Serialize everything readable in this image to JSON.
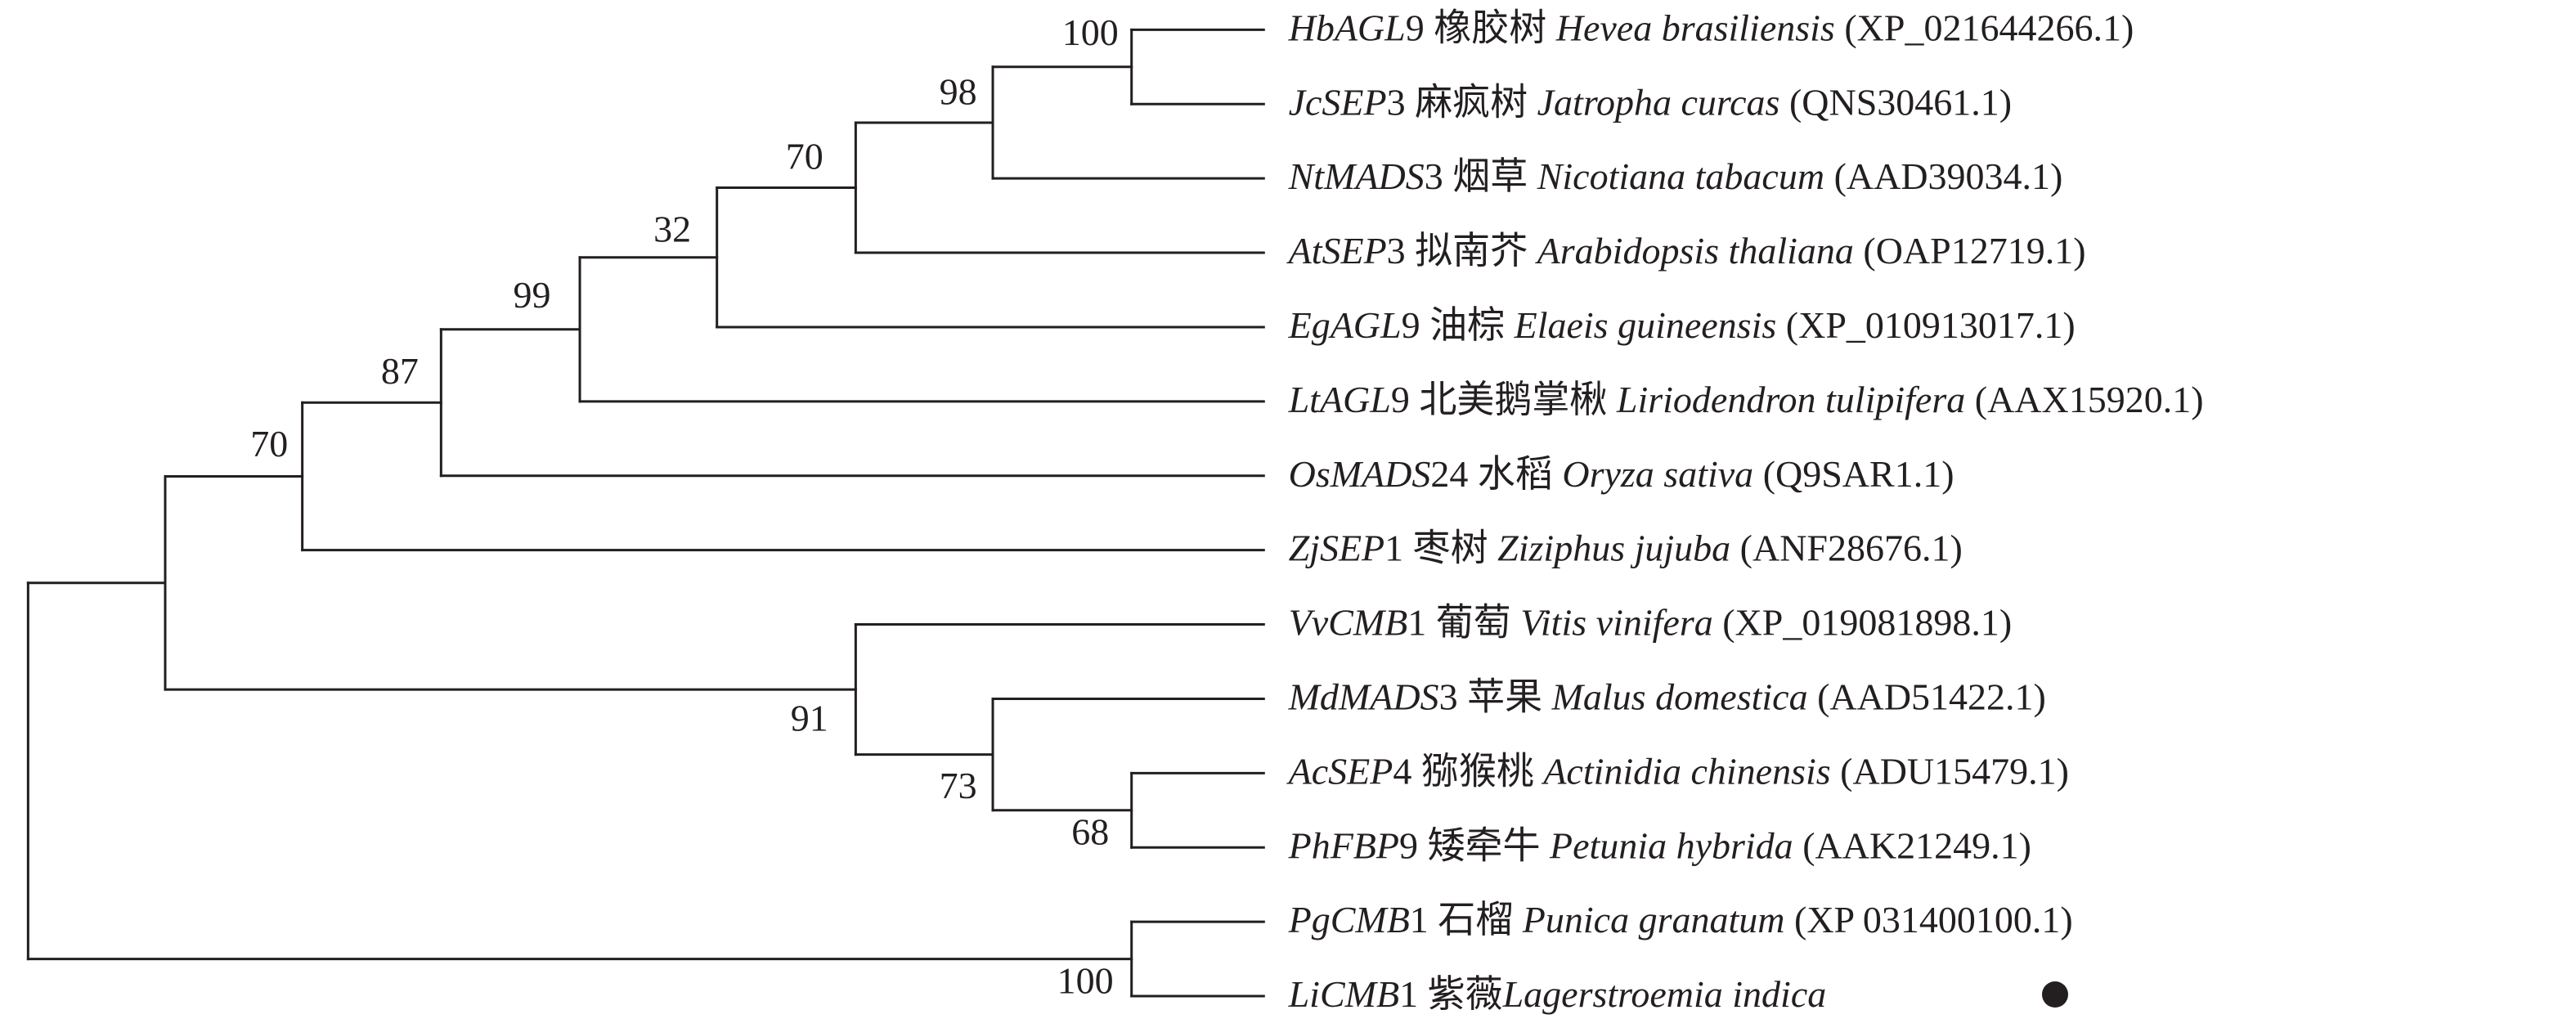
{
  "leaves": [
    {
      "gene": "HbAGL",
      "number": "9",
      "common_name": "橡胶树",
      "species": "Hevea brasiliensis",
      "accession": "(XP_021644266.1)"
    },
    {
      "gene": "JcSEP",
      "number": "3",
      "common_name": "麻疯树",
      "species": "Jatropha curcas",
      "accession": "(QNS30461.1)"
    },
    {
      "gene": "NtMADS",
      "number": "3",
      "common_name": "烟草",
      "species": "Nicotiana tabacum",
      "accession": "(AAD39034.1)"
    },
    {
      "gene": "AtSEP",
      "number": "3",
      "common_name": "拟南芥",
      "species": "Arabidopsis thaliana",
      "accession": "(OAP12719.1)"
    },
    {
      "gene": "EgAGL",
      "number": "9",
      "common_name": "油棕",
      "species": "Elaeis guineensis",
      "accession": "(XP_010913017.1)"
    },
    {
      "gene": "LtAGL",
      "number": "9",
      "common_name": "北美鹅掌楸",
      "species": "Liriodendron tulipifera",
      "accession": "(AAX15920.1)"
    },
    {
      "gene": "OsMADS",
      "number": "24",
      "common_name": "水稻",
      "species": "Oryza sativa",
      "accession": "(Q9SAR1.1)"
    },
    {
      "gene": "ZjSEP",
      "number": "1",
      "common_name": "枣树",
      "species": "Ziziphus jujuba",
      "accession": "(ANF28676.1)"
    },
    {
      "gene": "VvCMB",
      "number": "1",
      "common_name": "葡萄",
      "species": "Vitis vinifera",
      "accession": "(XP_019081898.1)"
    },
    {
      "gene": "MdMADS",
      "number": "3",
      "common_name": "苹果",
      "species": "Malus domestica",
      "accession": "(AAD51422.1)"
    },
    {
      "gene": "AcSEP",
      "number": "4",
      "common_name": "猕猴桃",
      "species": "Actinidia chinensis",
      "accession": "(ADU15479.1)"
    },
    {
      "gene": "PhFBP",
      "number": "9",
      "common_name": "矮牵牛",
      "species": "Petunia hybrida",
      "accession": "(AAK21249.1)"
    },
    {
      "gene": "PgCMB",
      "number": "1",
      "common_name": "石榴",
      "species": "Punica granatum",
      "accession": "(XP 031400100.1)"
    },
    {
      "gene": "LiCMB",
      "number": "1",
      "common_name": "紫薇",
      "species": "Lagerstroemia indica"
    }
  ],
  "bootstrap": [
    100,
    98,
    70,
    32,
    99,
    87,
    70,
    68,
    73,
    91,
    100
  ]
}
